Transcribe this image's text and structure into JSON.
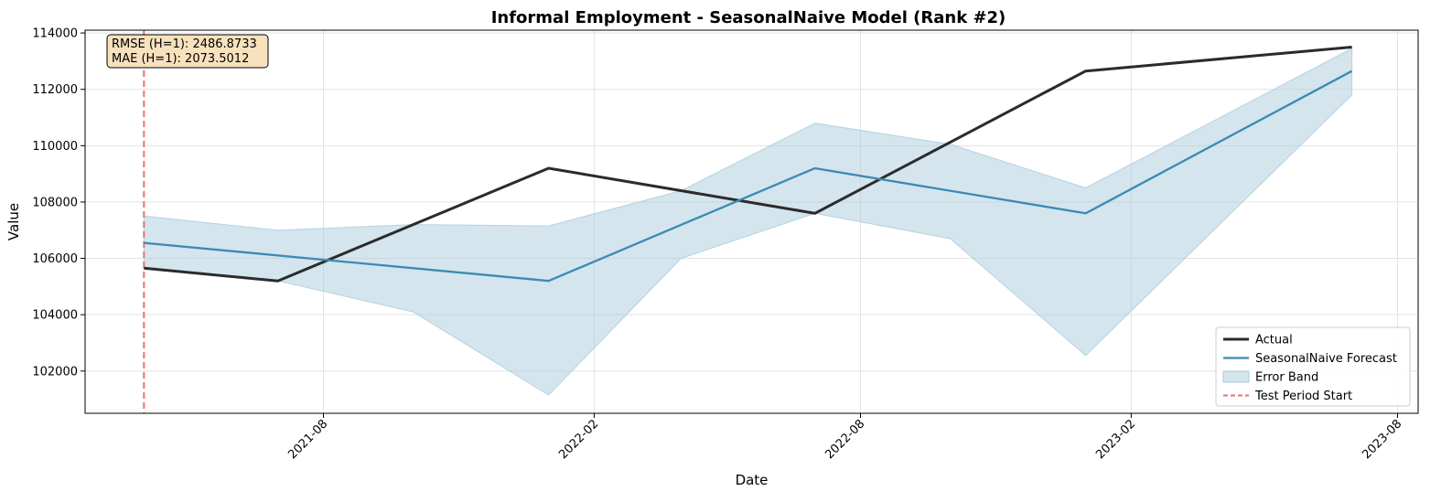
{
  "chart_data": {
    "type": "line",
    "title": "Informal Employment - SeasonalNaive Model (Rank #2)",
    "xlabel": "Date",
    "ylabel": "Value",
    "x": [
      "2021-04-01",
      "2021-07-01",
      "2021-10-01",
      "2022-01-01",
      "2022-04-01",
      "2022-07-01",
      "2022-10-01",
      "2023-01-01",
      "2023-07-01"
    ],
    "series": [
      {
        "name": "Actual",
        "color": "#2b2b2b",
        "x": [
          "2021-04-01",
          "2021-07-01",
          "2022-01-01",
          "2022-07-01",
          "2023-01-01",
          "2023-07-01"
        ],
        "values": [
          105650,
          105200,
          109200,
          107600,
          112650,
          113500
        ]
      },
      {
        "name": "SeasonalNaive Forecast",
        "color": "#3a8bb2",
        "x": [
          "2021-04-01",
          "2022-01-01",
          "2022-07-01",
          "2023-01-01",
          "2023-07-01"
        ],
        "values": [
          106550,
          105200,
          109200,
          107600,
          112650
        ]
      }
    ],
    "error_band": {
      "name": "Error Band",
      "color": "#a9cbdd",
      "x": [
        "2021-04-01",
        "2021-07-01",
        "2021-10-01",
        "2022-01-01",
        "2022-04-01",
        "2022-07-01",
        "2022-10-01",
        "2023-01-01",
        "2023-07-01"
      ],
      "upper": [
        107500,
        107000,
        107200,
        107150,
        108400,
        110800,
        110050,
        108500,
        113450
      ],
      "lower": [
        105650,
        105200,
        104100,
        101150,
        106000,
        107600,
        106700,
        102550,
        111800
      ]
    },
    "vline": {
      "name": "Test Period Start",
      "x": "2021-04-01",
      "color": "#f07070"
    },
    "xlim": [
      "2021-02-20",
      "2023-08-15"
    ],
    "ylim": [
      100500,
      114100
    ],
    "y_ticks": [
      102000,
      104000,
      106000,
      108000,
      110000,
      112000,
      114000
    ],
    "x_ticks": [
      {
        "date": "2021-08-01",
        "label": "2021-08"
      },
      {
        "date": "2022-02-01",
        "label": "2022-02"
      },
      {
        "date": "2022-08-01",
        "label": "2022-08"
      },
      {
        "date": "2023-02-01",
        "label": "2023-02"
      },
      {
        "date": "2023-08-01",
        "label": "2023-08"
      }
    ],
    "grid": true,
    "legend_position": "lower-right",
    "metrics": [
      "RMSE (H=1): 2486.8733",
      "MAE (H=1): 2073.5012"
    ]
  }
}
